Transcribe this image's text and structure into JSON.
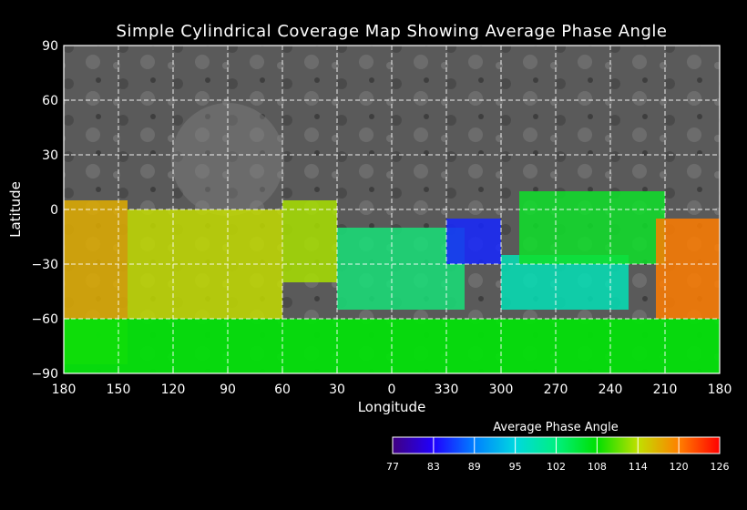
{
  "chart_data": {
    "type": "heatmap",
    "title": "Simple Cylindrical Coverage Map Showing Average Phase Angle",
    "xlabel": "Longitude",
    "ylabel": "Latitude",
    "x_ticks": [
      "180",
      "150",
      "120",
      "90",
      "60",
      "30",
      "0",
      "330",
      "300",
      "270",
      "240",
      "210",
      "180"
    ],
    "y_ticks": [
      "90",
      "60",
      "30",
      "0",
      "−30",
      "−60",
      "−90"
    ],
    "xlim": [
      180,
      -180
    ],
    "ylim": [
      -90,
      90
    ],
    "grid": true,
    "background": "grayscale basemap (north), colored coverage (south)",
    "colorbar": {
      "title": "Average Phase Angle",
      "ticks": [
        "77",
        "83",
        "89",
        "95",
        "102",
        "108",
        "114",
        "120",
        "126"
      ],
      "range": [
        77,
        126
      ],
      "colors": [
        "#400080",
        "#2000ff",
        "#0080ff",
        "#00e0c0",
        "#20e060",
        "#00e000",
        "#c0e000",
        "#ff8000",
        "#ff0000"
      ]
    },
    "regions": [
      {
        "lon_range": [
          180,
          145
        ],
        "lat_range": [
          -85,
          5
        ],
        "phase_angle": 117
      },
      {
        "lon_range": [
          145,
          60
        ],
        "lat_range": [
          -60,
          0
        ],
        "phase_angle": 114
      },
      {
        "lon_range": [
          60,
          30
        ],
        "lat_range": [
          -40,
          5
        ],
        "phase_angle": 113
      },
      {
        "lon_range": [
          30,
          320
        ],
        "lat_range": [
          -55,
          -10
        ],
        "phase_angle": 100
      },
      {
        "lon_range": [
          330,
          300
        ],
        "lat_range": [
          -30,
          -5
        ],
        "phase_angle": 85
      },
      {
        "lon_range": [
          300,
          230
        ],
        "lat_range": [
          -55,
          -25
        ],
        "phase_angle": 96
      },
      {
        "lon_range": [
          290,
          210
        ],
        "lat_range": [
          -30,
          10
        ],
        "phase_angle": 105
      },
      {
        "lon_range": [
          215,
          180
        ],
        "lat_range": [
          -60,
          -5
        ],
        "phase_angle": 120
      },
      {
        "lon_range": [
          180,
          180
        ],
        "lat_range": [
          -90,
          -60
        ],
        "phase_angle": 107
      }
    ]
  }
}
